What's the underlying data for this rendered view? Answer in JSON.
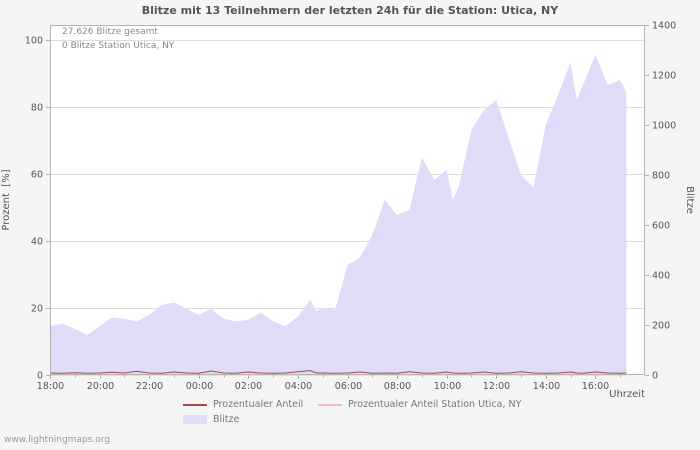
{
  "page": {
    "watermark": "www.lightningmaps.org",
    "background": "#f5f5f5"
  },
  "chart_data": {
    "type": "area",
    "title": "Blitze mit 13 Teilnehmern der letzten 24h für die Station: Utica, NY",
    "xlabel": "Uhrzeit",
    "ylabel_left": "Prozent  [%]",
    "ylabel_right": "Blitze",
    "annotations": [
      "27.626 Blitze gesamt",
      "0 Blitze Station Utica, NY"
    ],
    "x_axis": {
      "start_time": "18:00",
      "range_hours": [
        0,
        24
      ],
      "tick_hours": [
        0,
        2,
        4,
        6,
        8,
        10,
        12,
        14,
        16,
        18,
        20,
        22
      ],
      "tick_labels": [
        "18:00",
        "20:00",
        "22:00",
        "00:00",
        "02:00",
        "04:00",
        "06:00",
        "08:00",
        "10:00",
        "12:00",
        "14:00",
        "16:00"
      ]
    },
    "yleft": {
      "ticks": [
        0,
        20,
        40,
        60,
        80,
        100
      ],
      "range": [
        0,
        104.5
      ],
      "grid": true
    },
    "yright": {
      "ticks": [
        0,
        200,
        400,
        600,
        800,
        1000,
        1200,
        1400
      ],
      "range": [
        0,
        1400
      ],
      "grid": false
    },
    "x": [
      0,
      0.5,
      1,
      1.5,
      2,
      2.5,
      3,
      3.5,
      4,
      4.5,
      5,
      5.5,
      6,
      6.5,
      7,
      7.5,
      8,
      8.5,
      9,
      9.5,
      10,
      10.5,
      10.75,
      11,
      11.5,
      12,
      12.5,
      13,
      13.5,
      14,
      14.5,
      15,
      15.5,
      16,
      16.25,
      16.5,
      17,
      17.5,
      18,
      18.5,
      19,
      19.5,
      20,
      20.5,
      21,
      21.25,
      21.5,
      22,
      22.5,
      23,
      23.25
    ],
    "series": [
      {
        "name": "Blitze",
        "axis": "right",
        "style": "area",
        "color": "#dedcf6",
        "values": [
          195,
          205,
          185,
          160,
          195,
          230,
          225,
          215,
          240,
          280,
          290,
          265,
          240,
          265,
          225,
          215,
          220,
          250,
          215,
          195,
          235,
          300,
          255,
          270,
          260,
          440,
          470,
          560,
          700,
          640,
          660,
          870,
          780,
          820,
          700,
          760,
          980,
          1060,
          1100,
          950,
          800,
          750,
          1000,
          1120,
          1250,
          1100,
          1160,
          1280,
          1160,
          1180,
          1130
        ]
      },
      {
        "name": "Prozentualer Anteil",
        "axis": "left",
        "style": "line",
        "color": "#a84a4a",
        "values": [
          0.6,
          0.5,
          0.7,
          0.5,
          0.6,
          0.8,
          0.6,
          1.1,
          0.6,
          0.5,
          0.9,
          0.6,
          0.5,
          1.2,
          0.6,
          0.5,
          0.9,
          0.6,
          0.5,
          0.6,
          1.0,
          1.3,
          0.6,
          0.6,
          0.5,
          0.6,
          0.9,
          0.5,
          0.6,
          0.5,
          1.0,
          0.6,
          0.5,
          0.9,
          0.6,
          0.5,
          0.6,
          0.9,
          0.5,
          0.6,
          1.0,
          0.6,
          0.5,
          0.6,
          0.9,
          0.6,
          0.5,
          0.9,
          0.6,
          0.5,
          0.6
        ]
      },
      {
        "name": "Prozentualer Anteil Station Utica, NY",
        "axis": "left",
        "style": "line",
        "color": "#f2bcbc",
        "constant": 0
      }
    ],
    "legend": [
      {
        "label": "Prozentualer Anteil",
        "swatch": "line",
        "color": "#a84a4a"
      },
      {
        "label": "Prozentualer Anteil Station Utica, NY",
        "swatch": "line",
        "color": "#f2bcbc"
      },
      {
        "label": "Blitze",
        "swatch": "area",
        "color": "#dedcf6"
      }
    ],
    "colors": {
      "grid": "#dddddd",
      "border": "#b3b3b3",
      "tick_text": "#555555",
      "plot_bg": "#ffffff"
    }
  }
}
